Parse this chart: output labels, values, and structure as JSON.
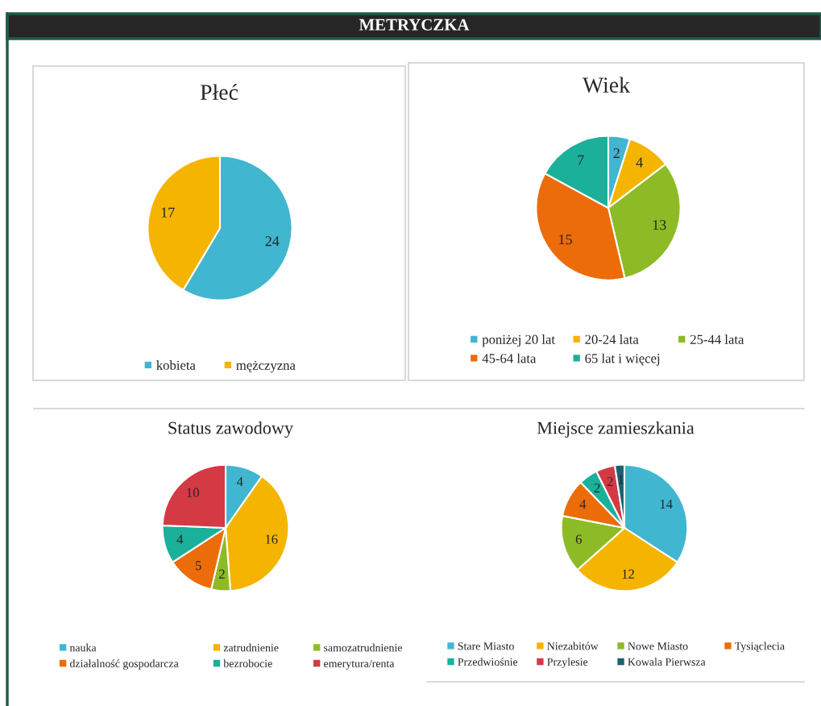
{
  "chart_data": [
    {
      "type": "other",
      "title": "METRYCZKA"
    },
    {
      "type": "pie",
      "title": "Płeć",
      "categories": [
        "kobieta",
        "mężczyzna"
      ],
      "values": [
        24,
        17
      ],
      "colors": [
        "#40b6d0",
        "#f5b400"
      ],
      "data_labels": true,
      "legend": "bottom"
    },
    {
      "type": "pie",
      "title": "Wiek",
      "categories": [
        "poniżej 20 lat",
        "20-24 lata",
        "25-44 lata",
        "45-64 lata",
        "65 lat i więcej"
      ],
      "values": [
        2,
        4,
        13,
        15,
        7
      ],
      "colors": [
        "#40b6d0",
        "#f5b400",
        "#8dbb25",
        "#ec6c0a",
        "#1ab09a"
      ],
      "data_labels": true,
      "legend": "bottom"
    },
    {
      "type": "pie",
      "title": "Status zawodowy",
      "categories": [
        "nauka",
        "zatrudnienie",
        "samozatrudnienie",
        "działalność gospodarcza",
        "bezrobocie",
        "emerytura/renta"
      ],
      "values": [
        4,
        16,
        2,
        5,
        4,
        10
      ],
      "colors": [
        "#40b6d0",
        "#f5b400",
        "#8dbb25",
        "#ec6c0a",
        "#1ab09a",
        "#d43a44"
      ],
      "data_labels": true,
      "legend": "bottom"
    },
    {
      "type": "pie",
      "title": "Miejsce zamieszkania",
      "categories": [
        "Stare Miasto",
        "Niezabitów",
        "Nowe Miasto",
        "Tysiąclecia",
        "Przedwiośnie",
        "Przylesie",
        "Kowala Pierwsza"
      ],
      "values": [
        14,
        12,
        6,
        4,
        2,
        2,
        1
      ],
      "colors": [
        "#40b6d0",
        "#f5b400",
        "#8dbb25",
        "#ec6c0a",
        "#1ab09a",
        "#d43a44",
        "#1e6072"
      ],
      "data_labels": true,
      "legend": "bottom"
    }
  ]
}
